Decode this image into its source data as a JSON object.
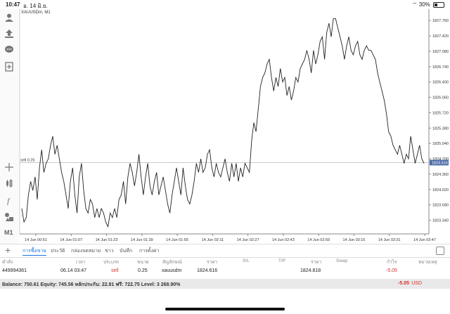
{
  "status": {
    "time": "10:47",
    "date": "อ. 14 มิ.ย.",
    "battery": "30%",
    "wifi_icon": "wifi-icon",
    "battery_icon": "battery-icon"
  },
  "chart": {
    "symbol_title": "XAUUSDm, M1",
    "position_label": "sell 0.25",
    "current_price_label": "1824.616"
  },
  "chart_data": {
    "type": "line",
    "ylim": [
      1823.1,
      1827.95
    ],
    "y_ticks": [
      "1827.760",
      "1827.420",
      "1827.080",
      "1826.740",
      "1826.400",
      "1826.060",
      "1825.720",
      "1825.380",
      "1825.040",
      "1824.700",
      "1824.360",
      "1824.020",
      "1823.680",
      "1823.340"
    ],
    "x_ticks": [
      "14 Jun 00:51",
      "14 Jun 01:07",
      "14 Jun 01:23",
      "14 Jun 01:39",
      "14 Jun 01:55",
      "14 Jun 02:11",
      "14 Jun 02:27",
      "14 Jun 02:43",
      "14 Jun 02:59",
      "14 Jun 03:15",
      "14 Jun 03:31",
      "14 Jun 03:47"
    ],
    "y_values": [
      1823.6,
      1823.3,
      1823.4,
      1823.9,
      1824.2,
      1824.0,
      1824.3,
      1823.8,
      1824.5,
      1824.9,
      1824.4,
      1824.6,
      1824.7,
      1825.0,
      1825.2,
      1824.8,
      1825.0,
      1824.7,
      1824.4,
      1824.2,
      1823.9,
      1823.6,
      1824.2,
      1824.5,
      1823.9,
      1823.5,
      1824.3,
      1824.6,
      1824.0,
      1823.6,
      1823.5,
      1823.8,
      1823.7,
      1823.4,
      1823.6,
      1823.4,
      1823.6,
      1823.5,
      1823.3,
      1823.2,
      1823.5,
      1823.4,
      1823.6,
      1823.4,
      1823.8,
      1823.9,
      1824.2,
      1823.7,
      1824.3,
      1824.6,
      1824.4,
      1824.1,
      1824.4,
      1824.8,
      1824.3,
      1823.9,
      1824.3,
      1824.6,
      1824.1,
      1823.9,
      1824.2,
      1824.4,
      1823.9,
      1824.1,
      1824.3,
      1824.0,
      1823.7,
      1823.5,
      1823.9,
      1824.2,
      1824.5,
      1824.2,
      1823.9,
      1824.5,
      1824.1,
      1823.8,
      1823.7,
      1823.9,
      1824.2,
      1824.6,
      1824.4,
      1824.7,
      1824.4,
      1824.5,
      1824.8,
      1824.9,
      1824.5,
      1824.3,
      1824.6,
      1824.4,
      1824.3,
      1824.5,
      1824.7,
      1824.4,
      1824.2,
      1824.6,
      1824.3,
      1824.6,
      1824.2,
      1824.5,
      1824.3,
      1824.6,
      1824.5,
      1824.4,
      1825.1,
      1825.5,
      1825.3,
      1825.8,
      1826.3,
      1826.5,
      1826.6,
      1826.8,
      1826.9,
      1826.5,
      1826.2,
      1826.5,
      1826.3,
      1826.7,
      1826.4,
      1826.5,
      1826.1,
      1826.3,
      1826.0,
      1826.2,
      1826.5,
      1826.4,
      1826.7,
      1826.8,
      1826.9,
      1827.1,
      1826.9,
      1826.6,
      1827.1,
      1826.8,
      1827.0,
      1827.3,
      1827.4,
      1826.9,
      1827.5,
      1827.7,
      1827.4,
      1827.8,
      1827.8,
      1827.6,
      1827.4,
      1827.2,
      1826.9,
      1827.2,
      1827.4,
      1827.1,
      1827.0,
      1827.2,
      1827.3,
      1827.0,
      1826.9,
      1827.1,
      1827.2,
      1827.1,
      1827.1,
      1827.0,
      1826.9,
      1826.6,
      1826.4,
      1826.2,
      1826.0,
      1825.7,
      1825.3,
      1825.2,
      1825.0,
      1824.9,
      1824.8,
      1825.0,
      1824.8,
      1824.6,
      1824.8,
      1824.7,
      1825.2,
      1824.9,
      1824.6,
      1824.8,
      1825.0,
      1824.7,
      1824.6
    ],
    "grid": false,
    "legend": "none",
    "colors": {
      "line": "#222222",
      "position_line": "#b8b8b8",
      "price_tag_bg": "#4f6ea8"
    }
  },
  "toolbar": {
    "icons": [
      "profile-icon",
      "upload-share-icon",
      "chat-icon",
      "add-document-icon",
      "crosshair-icon",
      "candles-icon",
      "function-icon",
      "objects-icon"
    ],
    "timeframe": "M1"
  },
  "tabs": {
    "plus": "+",
    "items": [
      "การซื้อขาย",
      "ประวัติ",
      "กล่องจดหมาย",
      "ข่าว",
      "บันทึก",
      "การตั้งค่า"
    ],
    "active_index": 0
  },
  "table": {
    "headers": [
      "คำสั่ง",
      "เวลา",
      "ประเภท",
      "ขนาด",
      "สัญลักษณ์",
      "ราคา",
      "S/L",
      "T/P",
      "ราคา",
      "Swap",
      "กำไร",
      "หมายเหตุ"
    ],
    "row": {
      "order": "449994361",
      "time": "06.14 03:47",
      "type": "sell",
      "size": "0.25",
      "symbol": "xauusdm",
      "open_price": "1824.616",
      "sl": "",
      "tp": "",
      "price": "1824.818",
      "swap": "",
      "profit": "-5.05",
      "comment": ""
    }
  },
  "balance": {
    "text": "Balance: 750.61  Equity: 745.56  หลักประกัน: 22.81  ฟรี: 722.75  Level: 3 268.90%",
    "pl": "-5.05",
    "currency": "USD"
  }
}
